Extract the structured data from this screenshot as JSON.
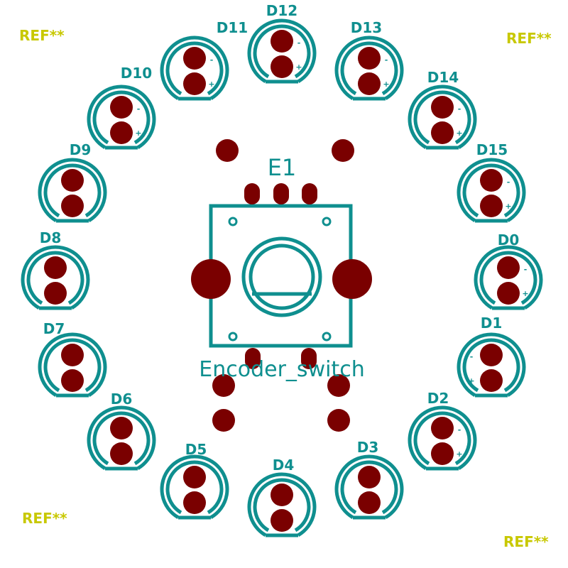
{
  "colors": {
    "background": "#ffffff",
    "outline": "#0f8f8f",
    "pad": "#7a0000",
    "reference": "#c8c800"
  },
  "leds": [
    {
      "label": "D0",
      "show_polarity": true
    },
    {
      "label": "D1",
      "show_polarity": true
    },
    {
      "label": "D2",
      "show_polarity": true
    },
    {
      "label": "D3",
      "show_polarity": false
    },
    {
      "label": "D4",
      "show_polarity": false
    },
    {
      "label": "D5",
      "show_polarity": false
    },
    {
      "label": "D6",
      "show_polarity": false
    },
    {
      "label": "D7",
      "show_polarity": false
    },
    {
      "label": "D8",
      "show_polarity": false
    },
    {
      "label": "D9",
      "show_polarity": false
    },
    {
      "label": "D10",
      "show_polarity": true
    },
    {
      "label": "D11",
      "show_polarity": true
    },
    {
      "label": "D12",
      "show_polarity": true
    },
    {
      "label": "D13",
      "show_polarity": true
    },
    {
      "label": "D14",
      "show_polarity": true
    },
    {
      "label": "D15",
      "show_polarity": true
    }
  ],
  "polarity": {
    "negative": "-",
    "positive": "+"
  },
  "encoder": {
    "reference": "E1",
    "value": "Encoder_switch"
  },
  "reference_markers": [
    "REF**",
    "REF**",
    "REF**",
    "REF**"
  ]
}
